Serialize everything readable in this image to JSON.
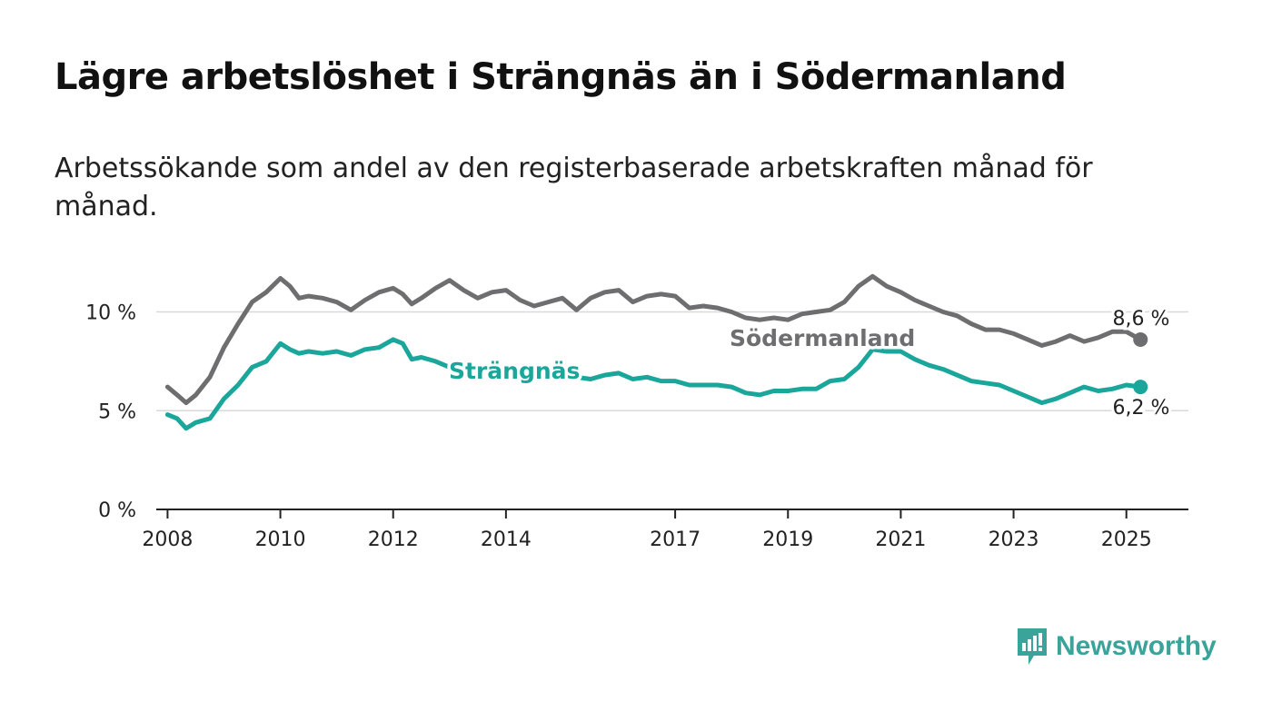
{
  "title": "Lägre arbetslöshet i Strängnäs än i Södermanland",
  "subtitle": "Arbetssökande som andel av den registerbaserade arbetskraften månad för månad.",
  "brand": {
    "name": "Newsworthy",
    "icon": "newsworthy-logo-icon",
    "color": "#3aa39a"
  },
  "chart_data": {
    "type": "line",
    "title": "Lägre arbetslöshet i Strängnäs än i Södermanland",
    "subtitle": "Arbetssökande som andel av den registerbaserade arbetskraften månad för månad.",
    "xlabel": "",
    "ylabel": "",
    "xlim": [
      2007.8,
      2026.1
    ],
    "ylim": [
      0,
      12
    ],
    "x_ticks": [
      2008,
      2010,
      2012,
      2014,
      2017,
      2019,
      2021,
      2023,
      2025
    ],
    "x_tick_labels": [
      "2008",
      "2010",
      "2012",
      "2014",
      "2017",
      "2019",
      "2021",
      "2023",
      "2025"
    ],
    "y_ticks": [
      0,
      5,
      10
    ],
    "y_tick_labels": [
      "0 %",
      "5 %",
      "10 %"
    ],
    "grid": "horizontal",
    "legend": "inline labels",
    "x": [
      2008.0,
      2008.17,
      2008.33,
      2008.5,
      2008.75,
      2009.0,
      2009.25,
      2009.5,
      2009.75,
      2010.0,
      2010.17,
      2010.33,
      2010.5,
      2010.75,
      2011.0,
      2011.25,
      2011.5,
      2011.75,
      2012.0,
      2012.17,
      2012.33,
      2012.5,
      2012.75,
      2013.0,
      2013.25,
      2013.5,
      2013.75,
      2014.0,
      2014.25,
      2014.5,
      2014.75,
      2015.0,
      2015.25,
      2015.5,
      2015.75,
      2016.0,
      2016.25,
      2016.5,
      2016.75,
      2017.0,
      2017.25,
      2017.5,
      2017.75,
      2018.0,
      2018.25,
      2018.5,
      2018.75,
      2019.0,
      2019.25,
      2019.5,
      2019.75,
      2020.0,
      2020.25,
      2020.5,
      2020.75,
      2021.0,
      2021.25,
      2021.5,
      2021.75,
      2022.0,
      2022.25,
      2022.5,
      2022.75,
      2023.0,
      2023.25,
      2023.5,
      2023.75,
      2024.0,
      2024.25,
      2024.5,
      2024.75,
      2025.0,
      2025.25
    ],
    "series": [
      {
        "name": "Södermanland",
        "color": "#6e6e70",
        "values": [
          6.2,
          5.8,
          5.4,
          5.8,
          6.7,
          8.2,
          9.4,
          10.5,
          11.0,
          11.7,
          11.3,
          10.7,
          10.8,
          10.7,
          10.5,
          10.1,
          10.6,
          11.0,
          11.2,
          10.9,
          10.4,
          10.7,
          11.2,
          11.6,
          11.1,
          10.7,
          11.0,
          11.1,
          10.6,
          10.3,
          10.5,
          10.7,
          10.1,
          10.7,
          11.0,
          11.1,
          10.5,
          10.8,
          10.9,
          10.8,
          10.2,
          10.3,
          10.2,
          10.0,
          9.7,
          9.6,
          9.7,
          9.6,
          9.9,
          10.0,
          10.1,
          10.5,
          11.3,
          11.8,
          11.3,
          11.0,
          10.6,
          10.3,
          10.0,
          9.8,
          9.4,
          9.1,
          9.1,
          8.9,
          8.6,
          8.3,
          8.5,
          8.8,
          8.5,
          8.7,
          9.0,
          9.0,
          8.6
        ]
      },
      {
        "name": "Strängnäs",
        "color": "#1aa69a",
        "values": [
          4.8,
          4.6,
          4.1,
          4.4,
          4.6,
          5.6,
          6.3,
          7.2,
          7.5,
          8.4,
          8.1,
          7.9,
          8.0,
          7.9,
          8.0,
          7.8,
          8.1,
          8.2,
          8.6,
          8.4,
          7.6,
          7.7,
          7.5,
          7.2,
          7.0,
          6.9,
          7.0,
          6.8,
          6.7,
          6.7,
          6.7,
          6.6,
          6.7,
          6.6,
          6.8,
          6.9,
          6.6,
          6.7,
          6.5,
          6.5,
          6.3,
          6.3,
          6.3,
          6.2,
          5.9,
          5.8,
          6.0,
          6.0,
          6.1,
          6.1,
          6.5,
          6.6,
          7.2,
          8.1,
          8.0,
          8.0,
          7.6,
          7.3,
          7.1,
          6.8,
          6.5,
          6.4,
          6.3,
          6.0,
          5.7,
          5.4,
          5.6,
          5.9,
          6.2,
          6.0,
          6.1,
          6.3,
          6.2
        ]
      }
    ],
    "annotations": [
      {
        "text": "Södermanland",
        "series": "Södermanland"
      },
      {
        "text": "Strängnäs",
        "series": "Strängnäs"
      },
      {
        "text": "8,6 %",
        "series": "Södermanland",
        "kind": "last-value"
      },
      {
        "text": "6,2 %",
        "series": "Strängnäs",
        "kind": "last-value"
      }
    ]
  }
}
